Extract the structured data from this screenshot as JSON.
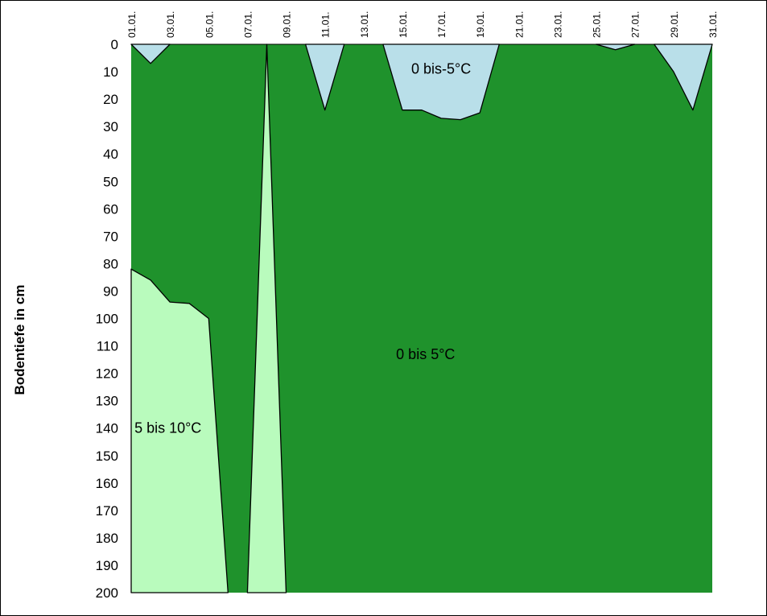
{
  "chart_data": {
    "type": "area",
    "ylabel": "Bodentiefe in cm",
    "ylim": [
      0,
      200
    ],
    "y_inverted": true,
    "x_days": 31,
    "y_ticks": [
      "0",
      "10",
      "20",
      "30",
      "40",
      "50",
      "60",
      "70",
      "80",
      "90",
      "100",
      "110",
      "120",
      "130",
      "140",
      "150",
      "160",
      "170",
      "180",
      "190",
      "200"
    ],
    "x_tick_labels": [
      {
        "day": 1,
        "label": "01.01."
      },
      {
        "day": 3,
        "label": "03.01."
      },
      {
        "day": 5,
        "label": "05.01."
      },
      {
        "day": 7,
        "label": "07.01."
      },
      {
        "day": 9,
        "label": "09.01."
      },
      {
        "day": 11,
        "label": "11.01."
      },
      {
        "day": 13,
        "label": "13.01."
      },
      {
        "day": 15,
        "label": "15.01."
      },
      {
        "day": 17,
        "label": "17.01."
      },
      {
        "day": 19,
        "label": "19.01."
      },
      {
        "day": 21,
        "label": "21.01."
      },
      {
        "day": 23,
        "label": "23.01."
      },
      {
        "day": 25,
        "label": "25.01."
      },
      {
        "day": 27,
        "label": "27.01."
      },
      {
        "day": 29,
        "label": "29.01."
      },
      {
        "day": 31,
        "label": "31.01."
      }
    ],
    "regions": [
      {
        "name": "0 bis 5°C",
        "color": "#1f922c",
        "polygon": [
          [
            1,
            0
          ],
          [
            31,
            0
          ],
          [
            31,
            200
          ],
          [
            1,
            200
          ]
        ]
      },
      {
        "name": "0 bis-5°C",
        "color": "#b9dfe9",
        "polygons": [
          [
            [
              1,
              0
            ],
            [
              2,
              7
            ],
            [
              3,
              0
            ]
          ],
          [
            [
              10,
              0
            ],
            [
              11,
              24
            ],
            [
              12,
              0
            ]
          ],
          [
            [
              14,
              0
            ],
            [
              15,
              24
            ],
            [
              16,
              24
            ],
            [
              17,
              27
            ],
            [
              18,
              27.5
            ],
            [
              19,
              25
            ],
            [
              20,
              0
            ]
          ],
          [
            [
              25,
              0
            ],
            [
              26,
              2
            ],
            [
              27,
              0
            ]
          ],
          [
            [
              28,
              0
            ],
            [
              29,
              10
            ],
            [
              30,
              24
            ],
            [
              31,
              0
            ]
          ]
        ]
      },
      {
        "name": "5 bis 10°C",
        "color": "#b9fbbd",
        "polygons": [
          [
            [
              1,
              82
            ],
            [
              2,
              86
            ],
            [
              3,
              94
            ],
            [
              4,
              94.5
            ],
            [
              5,
              100
            ],
            [
              6,
              200
            ],
            [
              1,
              200
            ]
          ],
          [
            [
              7,
              200
            ],
            [
              8,
              0
            ],
            [
              9,
              200
            ]
          ]
        ]
      }
    ],
    "region_labels": [
      {
        "text": "0 bis-5°C",
        "day": 17,
        "depth": 9
      },
      {
        "text": "0 bis 5°C",
        "day": 16.2,
        "depth": 113
      },
      {
        "text": "5 bis 10°C",
        "day": 2.9,
        "depth": 140
      }
    ]
  }
}
